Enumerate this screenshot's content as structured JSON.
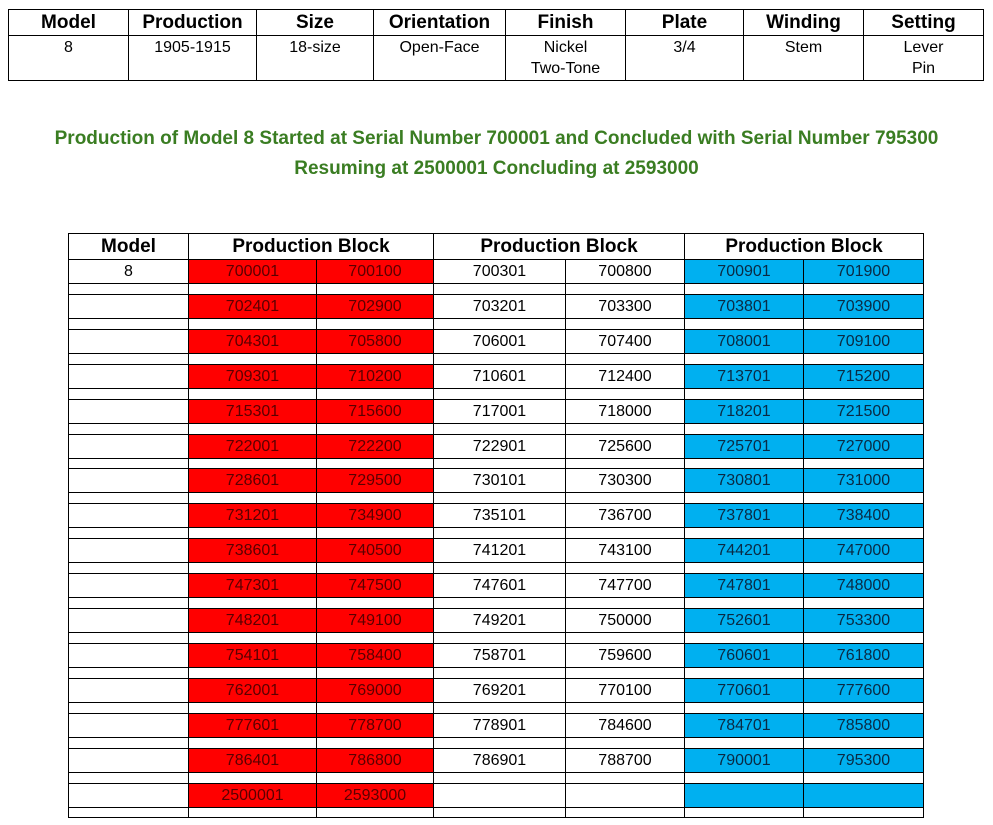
{
  "spec_table": {
    "headers": [
      "Model",
      "Production",
      "Size",
      "Orientation",
      "Finish",
      "Plate",
      "Winding",
      "Setting"
    ],
    "row": [
      [
        "8"
      ],
      [
        "1905-1915"
      ],
      [
        "18-size"
      ],
      [
        "Open-Face"
      ],
      [
        "Nickel",
        "Two-Tone"
      ],
      [
        "3/4"
      ],
      [
        "Stem"
      ],
      [
        "Lever",
        "Pin"
      ]
    ]
  },
  "notes": [
    "Production of Model 8 Started at Serial Number 700001 and Concluded with Serial Number 795300",
    "Resuming at 2500001 Concluding at 2593000"
  ],
  "block_table": {
    "headers": [
      "Model",
      "Production Block",
      "Production Block",
      "Production Block"
    ],
    "rows": [
      {
        "model": "8",
        "blocks": [
          [
            "700001",
            "700100"
          ],
          [
            "700301",
            "700800"
          ],
          [
            "700901",
            "701900"
          ]
        ]
      },
      {
        "blocks": [
          [
            "702401",
            "702900"
          ],
          [
            "703201",
            "703300"
          ],
          [
            "703801",
            "703900"
          ]
        ]
      },
      {
        "blocks": [
          [
            "704301",
            "705800"
          ],
          [
            "706001",
            "707400"
          ],
          [
            "708001",
            "709100"
          ]
        ]
      },
      {
        "blocks": [
          [
            "709301",
            "710200"
          ],
          [
            "710601",
            "712400"
          ],
          [
            "713701",
            "715200"
          ]
        ]
      },
      {
        "blocks": [
          [
            "715301",
            "715600"
          ],
          [
            "717001",
            "718000"
          ],
          [
            "718201",
            "721500"
          ]
        ]
      },
      {
        "blocks": [
          [
            "722001",
            "722200"
          ],
          [
            "722901",
            "725600"
          ],
          [
            "725701",
            "727000"
          ]
        ]
      },
      {
        "blocks": [
          [
            "728601",
            "729500"
          ],
          [
            "730101",
            "730300"
          ],
          [
            "730801",
            "731000"
          ]
        ]
      },
      {
        "blocks": [
          [
            "731201",
            "734900"
          ],
          [
            "735101",
            "736700"
          ],
          [
            "737801",
            "738400"
          ]
        ]
      },
      {
        "blocks": [
          [
            "738601",
            "740500"
          ],
          [
            "741201",
            "743100"
          ],
          [
            "744201",
            "747000"
          ]
        ]
      },
      {
        "blocks": [
          [
            "747301",
            "747500"
          ],
          [
            "747601",
            "747700"
          ],
          [
            "747801",
            "748000"
          ]
        ]
      },
      {
        "blocks": [
          [
            "748201",
            "749100"
          ],
          [
            "749201",
            "750000"
          ],
          [
            "752601",
            "753300"
          ]
        ]
      },
      {
        "blocks": [
          [
            "754101",
            "758400"
          ],
          [
            "758701",
            "759600"
          ],
          [
            "760601",
            "761800"
          ]
        ]
      },
      {
        "blocks": [
          [
            "762001",
            "769000"
          ],
          [
            "769201",
            "770100"
          ],
          [
            "770601",
            "777600"
          ]
        ]
      },
      {
        "blocks": [
          [
            "777601",
            "778700"
          ],
          [
            "778901",
            "784600"
          ],
          [
            "784701",
            "785800"
          ]
        ]
      },
      {
        "blocks": [
          [
            "786401",
            "786800"
          ],
          [
            "786901",
            "788700"
          ],
          [
            "790001",
            "795300"
          ]
        ]
      },
      {
        "blocks": [
          [
            "2500001",
            "2593000"
          ]
        ]
      }
    ]
  }
}
